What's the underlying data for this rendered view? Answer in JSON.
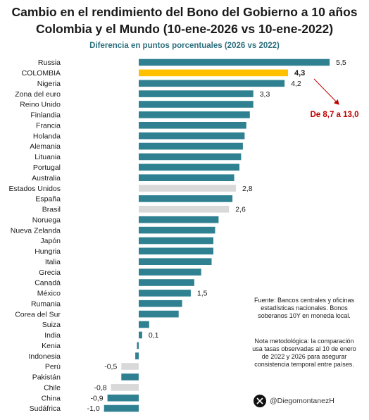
{
  "title_line1": "Cambio en el rendimiento del Bono del Gobierno a 10 años",
  "title_line2": "Colombia y el Mundo (10-ene-2026 vs 10-ene-2022)",
  "subtitle": "Diferencia en puntos porcentuales (2026 vs 2022)",
  "annotation": "De 8,7 a 13,0",
  "source_note": "Fuente: Bancos centrales y oficinas estadísticas nacionales. Bonos soberanos 10Y en moneda local.",
  "method_note": "Nota metodológica: la comparación usa tasas observadas al 10 de enero de 2022 y 2026 para asegurar consistencia temporal entre países.",
  "handle": "@DiegomontanezH",
  "colors": {
    "default": "#2f8191",
    "highlight": "#ffc000",
    "gray": "#d9d9d9",
    "annotation": "#c00000"
  },
  "chart_data": {
    "type": "bar",
    "orientation": "horizontal",
    "title": "Diferencia en puntos porcentuales (2026 vs 2022)",
    "xlim": [
      -1.0,
      5.5
    ],
    "grid": false,
    "categories": [
      "Russia",
      "COLOMBIA",
      "Nigeria",
      "Zona del euro",
      "Reino Unido",
      "Finlandia",
      "Francia",
      "Holanda",
      "Alemania",
      "Lituania",
      "Portugal",
      "Australia",
      "Estados Unidos",
      "España",
      "Brasil",
      "Noruega",
      "Nueva Zelanda",
      "Japón",
      "Hungria",
      "Italia",
      "Grecia",
      "Canadá",
      "México",
      "Rumania",
      "Corea del Sur",
      "Suiza",
      "India",
      "Kenia",
      "Indonesia",
      "Perú",
      "Pakistán",
      "Chile",
      "China",
      "Sudáfrica"
    ],
    "values": [
      5.5,
      4.3,
      4.2,
      3.3,
      3.3,
      3.2,
      3.1,
      3.05,
      3.0,
      2.95,
      2.9,
      2.75,
      2.8,
      2.7,
      2.6,
      2.3,
      2.2,
      2.15,
      2.15,
      2.1,
      1.8,
      1.6,
      1.5,
      1.25,
      1.15,
      0.3,
      0.1,
      -0.05,
      -0.1,
      -0.5,
      -0.5,
      -0.8,
      -0.9,
      -1.0
    ],
    "styles": [
      "default",
      "highlight",
      "default",
      "default",
      "default",
      "default",
      "default",
      "default",
      "default",
      "default",
      "default",
      "default",
      "gray",
      "default",
      "gray",
      "default",
      "default",
      "default",
      "default",
      "default",
      "default",
      "default",
      "default",
      "default",
      "default",
      "default",
      "default",
      "default",
      "default",
      "gray",
      "default",
      "gray",
      "default",
      "default"
    ],
    "data_labels": [
      "5,5",
      "4,3",
      "4,2",
      "3,3",
      "",
      "",
      "",
      "",
      "",
      "",
      "",
      "",
      "2,8",
      "",
      "2,6",
      "",
      "",
      "",
      "",
      "",
      "",
      "",
      "1,5",
      "",
      "",
      "",
      "0,1",
      "",
      "",
      "-0,5",
      "",
      "-0,8",
      "-0,9",
      "-1,0"
    ]
  }
}
